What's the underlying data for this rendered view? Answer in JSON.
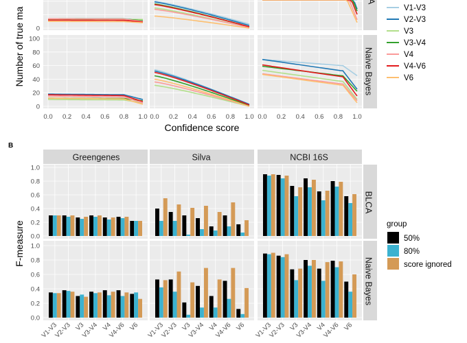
{
  "colors": {
    "panel_bg": "#ebebeb",
    "strip_bg": "#d9d9d9",
    "grid": "#ffffff",
    "V1-V3": "#a6cee3",
    "V2-V3": "#1f78b4",
    "V3": "#b2df8a",
    "V3-V4": "#33a02c",
    "V4": "#fb9a99",
    "V4-V6": "#e31a1c",
    "V6": "#fdbf6f",
    "50%": "#000000",
    "80%": "#3cb2d0",
    "score ignored": "#d49a56"
  },
  "panelA": {
    "ylabel": "Number of true ma",
    "xlabel": "Confidence score",
    "row_strips": [
      "A",
      "Naive Bayes"
    ],
    "yticks": [
      "0",
      "20",
      "40",
      "60",
      "80",
      "100"
    ],
    "xticks": [
      "0.0",
      "0.2",
      "0.4",
      "0.6",
      "0.8",
      "1.0"
    ],
    "top_yticks": [
      "0"
    ],
    "legend_items": [
      "V1-V3",
      "V2-V3",
      "V3",
      "V3-V4",
      "V4",
      "V4-V6",
      "V6"
    ]
  },
  "panelB": {
    "label": "B",
    "ylabel": "F-measure",
    "col_strips": [
      "Greengenes",
      "Silva",
      "NCBI 16S"
    ],
    "row_strips": [
      "BLCA",
      "Naive Bayes"
    ],
    "yticks": [
      "0.0",
      "0.2",
      "0.4",
      "0.6",
      "0.8",
      "1.0"
    ],
    "legend_title": "group",
    "legend_items": [
      "50%",
      "80%",
      "score ignored"
    ]
  },
  "chart_data": [
    {
      "type": "line",
      "title": "",
      "xlabel": "Confidence score",
      "ylabel": "Number of true ma",
      "xlim": [
        0,
        1
      ],
      "ylim": [
        0,
        100
      ],
      "row_facets": [
        "A",
        "Naive Bayes"
      ],
      "series_names": [
        "V1-V3",
        "V2-V3",
        "V3",
        "V3-V4",
        "V4",
        "V4-V6",
        "V6"
      ],
      "facets": [
        {
          "row": "A",
          "col": 1,
          "start": [
            14,
            14,
            13,
            14,
            14,
            12,
            10
          ],
          "end": [
            12,
            10,
            13,
            11,
            10,
            9,
            8
          ],
          "curve": "flat"
        },
        {
          "row": "A",
          "col": 2,
          "start": [
            40,
            39,
            30,
            36,
            28,
            35,
            18
          ],
          "end": [
            6,
            4,
            1,
            2,
            1,
            2,
            0
          ],
          "curve": "linear"
        },
        {
          "row": "A",
          "col": 3,
          "start": [
            120,
            120,
            105,
            115,
            98,
            108,
            85
          ],
          "end": [
            45,
            28,
            20,
            25,
            12,
            20,
            8
          ],
          "curve": "drop"
        },
        {
          "row": "Naive Bayes",
          "col": 1,
          "start": [
            18,
            18,
            10,
            12,
            15,
            17,
            12
          ],
          "end": [
            10,
            10,
            5,
            8,
            5,
            7,
            3
          ],
          "curve": "flat"
        },
        {
          "row": "Naive Bayes",
          "col": 2,
          "start": [
            54,
            52,
            31,
            45,
            36,
            50,
            40
          ],
          "end": [
            2,
            3,
            0,
            1,
            0,
            2,
            0
          ],
          "curve": "linear"
        },
        {
          "row": "Naive Bayes",
          "col": 3,
          "start": [
            69,
            69,
            53,
            59,
            48,
            61,
            47
          ],
          "end": [
            45,
            25,
            10,
            22,
            8,
            15,
            5
          ],
          "curve": "drop"
        }
      ]
    },
    {
      "type": "bar",
      "title": "",
      "xlabel": "",
      "ylabel": "F-measure",
      "ylim": [
        0,
        1
      ],
      "categories": [
        "V1-V3",
        "V2-V3",
        "V3",
        "V3-V4",
        "V4",
        "V4-V6",
        "V6"
      ],
      "series_names": [
        "50%",
        "80%",
        "score ignored"
      ],
      "facets": [
        {
          "row": "BLCA",
          "col": "Greengenes",
          "values": [
            [
              0.3,
              0.3,
              0.3
            ],
            [
              0.3,
              0.28,
              0.3
            ],
            [
              0.27,
              0.25,
              0.28
            ],
            [
              0.3,
              0.28,
              0.3
            ],
            [
              0.27,
              0.24,
              0.27
            ],
            [
              0.28,
              0.26,
              0.28
            ],
            [
              0.22,
              0.22,
              0.22
            ]
          ]
        },
        {
          "row": "BLCA",
          "col": "Silva",
          "values": [
            [
              0.4,
              0.22,
              0.55
            ],
            [
              0.35,
              0.22,
              0.46
            ],
            [
              0.3,
              0.02,
              0.41
            ],
            [
              0.26,
              0.1,
              0.44
            ],
            [
              0.14,
              0.08,
              0.35
            ],
            [
              0.3,
              0.14,
              0.49
            ],
            [
              0.17,
              0.05,
              0.23
            ]
          ]
        },
        {
          "row": "BLCA",
          "col": "NCBI 16S",
          "values": [
            [
              0.9,
              0.88,
              0.9
            ],
            [
              0.89,
              0.84,
              0.88
            ],
            [
              0.73,
              0.58,
              0.71
            ],
            [
              0.84,
              0.71,
              0.82
            ],
            [
              0.65,
              0.52,
              0.66
            ],
            [
              0.8,
              0.72,
              0.79
            ],
            [
              0.58,
              0.48,
              0.61
            ]
          ]
        },
        {
          "row": "Naive Bayes",
          "col": "Greengenes",
          "values": [
            [
              0.35,
              0.34,
              0.34
            ],
            [
              0.38,
              0.37,
              0.36
            ],
            [
              0.3,
              0.32,
              0.29
            ],
            [
              0.36,
              0.34,
              0.35
            ],
            [
              0.38,
              0.31,
              0.36
            ],
            [
              0.38,
              0.3,
              0.35
            ],
            [
              0.33,
              0.35,
              0.26
            ]
          ]
        },
        {
          "row": "Naive Bayes",
          "col": "Silva",
          "values": [
            [
              0.53,
              0.42,
              0.52
            ],
            [
              0.53,
              0.36,
              0.64
            ],
            [
              0.21,
              0.04,
              0.49
            ],
            [
              0.44,
              0.14,
              0.69
            ],
            [
              0.3,
              0.14,
              0.53
            ],
            [
              0.51,
              0.26,
              0.69
            ],
            [
              0.12,
              0.05,
              0.41
            ]
          ]
        },
        {
          "row": "Naive Bayes",
          "col": "NCBI 16S",
          "values": [
            [
              0.89,
              0.88,
              0.9
            ],
            [
              0.86,
              0.84,
              0.88
            ],
            [
              0.67,
              0.52,
              0.68
            ],
            [
              0.8,
              0.72,
              0.8
            ],
            [
              0.68,
              0.51,
              0.77
            ],
            [
              0.79,
              0.7,
              0.78
            ],
            [
              0.5,
              0.36,
              0.6
            ]
          ]
        }
      ]
    }
  ]
}
